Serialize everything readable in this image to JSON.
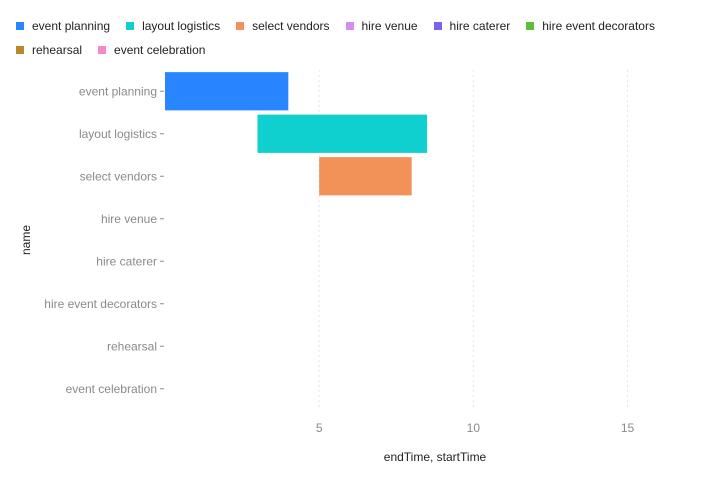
{
  "chart_data": {
    "type": "bar",
    "orientation": "horizontal-range",
    "xlabel": "endTime, startTime",
    "ylabel": "name",
    "xlim": [
      0,
      18
    ],
    "x_ticks": [
      5,
      10,
      15
    ],
    "grid": true,
    "legend_position": "top",
    "categories": [
      "event planning",
      "layout logistics",
      "select vendors",
      "hire venue",
      "hire caterer",
      "hire event decorators",
      "rehearsal",
      "event celebration"
    ],
    "series": [
      {
        "name": "event planning",
        "color": "#2a86ff",
        "start": 0,
        "end": 4
      },
      {
        "name": "layout logistics",
        "color": "#0fcfcf",
        "start": 3,
        "end": 8.5
      },
      {
        "name": "select vendors",
        "color": "#f29158",
        "start": 5,
        "end": 8
      },
      {
        "name": "hire venue",
        "color": "#d58cf5",
        "start": null,
        "end": null
      },
      {
        "name": "hire caterer",
        "color": "#7b61f0",
        "start": null,
        "end": null
      },
      {
        "name": "hire event decorators",
        "color": "#5bbf3a",
        "start": null,
        "end": null
      },
      {
        "name": "rehearsal",
        "color": "#b8892a",
        "start": null,
        "end": null
      },
      {
        "name": "event celebration",
        "color": "#f788c9",
        "start": null,
        "end": null
      }
    ]
  }
}
